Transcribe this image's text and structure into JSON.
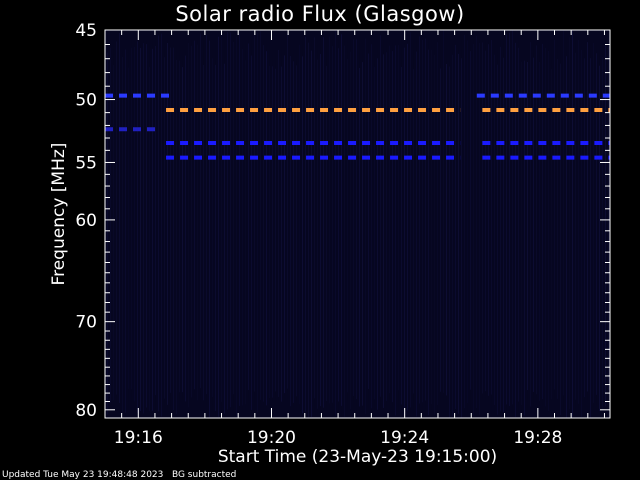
{
  "chart_data": {
    "type": "heatmap",
    "title": "Solar radio Flux (Glasgow)",
    "xlabel": "Start Time (23-May-23 19:15:00)",
    "ylabel": "Frequency [MHz]",
    "x_range_minutes": [
      "19:15:00",
      "19:30:10"
    ],
    "x_ticks": [
      "19:16",
      "19:20",
      "19:24",
      "19:28"
    ],
    "y_range": [
      45,
      81
    ],
    "y_ticks": [
      45,
      50,
      55,
      60,
      70,
      80
    ],
    "y_scale": "log",
    "background_color": "#000000",
    "plot_fill_color": "#060620",
    "series": [
      {
        "frequency": 50.8,
        "color": "#ffa040",
        "segments": [
          [
            "19:16:50",
            "19:25:40"
          ],
          [
            "19:26:20",
            "19:30:10"
          ]
        ]
      },
      {
        "frequency": 53.4,
        "color": "#1a1aff",
        "segments": [
          [
            "19:16:50",
            "19:25:40"
          ],
          [
            "19:26:20",
            "19:30:10"
          ]
        ]
      },
      {
        "frequency": 54.6,
        "color": "#1a1aff",
        "segments": [
          [
            "19:16:50",
            "19:25:40"
          ],
          [
            "19:26:20",
            "19:30:10"
          ]
        ]
      },
      {
        "frequency": 52.3,
        "color": "#2020c0",
        "segments": [
          [
            "19:15:00",
            "19:16:40"
          ]
        ]
      },
      {
        "frequency": 49.7,
        "color": "#2a3aff",
        "segments": [
          [
            "19:15:00",
            "19:17:00"
          ],
          [
            "19:26:10",
            "19:30:10"
          ]
        ]
      }
    ]
  },
  "footer": "Updated Tue May 23 19:48:48 2023   BG subtracted"
}
